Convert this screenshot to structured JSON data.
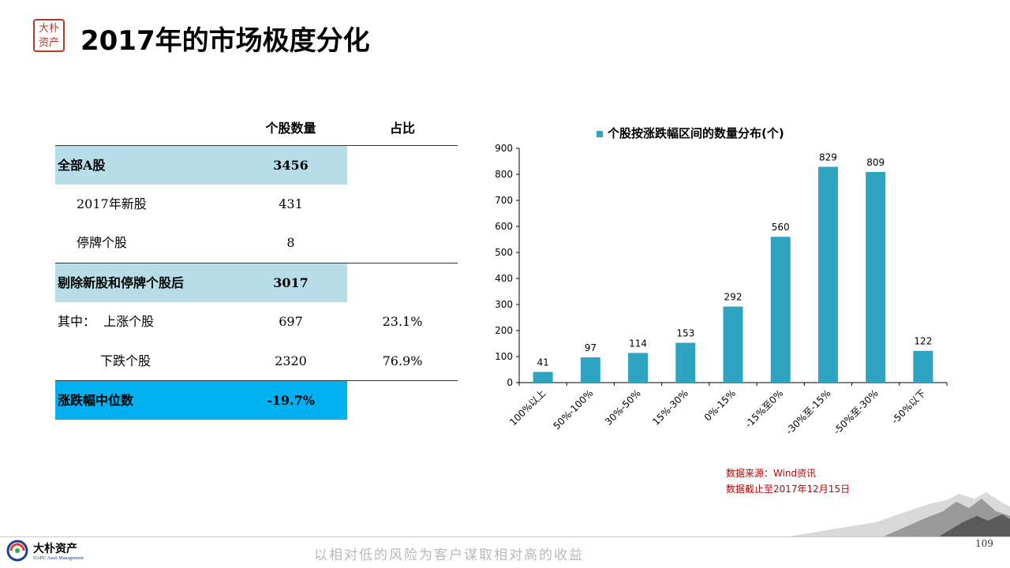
{
  "header": {
    "seal_text": "大朴资产",
    "title": "2017年的市场极度分化"
  },
  "table": {
    "headers": [
      "",
      "个股数量",
      "占比"
    ],
    "rows": [
      {
        "label": "全部A股",
        "count": "3456",
        "pct": ""
      },
      {
        "label": "2017年新股",
        "count": "431",
        "pct": ""
      },
      {
        "label": "停牌个股",
        "count": "8",
        "pct": ""
      },
      {
        "label": "剔除新股和停牌个股后",
        "count": "3017",
        "pct": ""
      },
      {
        "label": "其中：  上涨个股",
        "count": "697",
        "pct": "23.1%"
      },
      {
        "label": "下跌个股",
        "count": "2320",
        "pct": "76.9%"
      },
      {
        "label": "涨跌幅中位数",
        "count": "-19.7%",
        "pct": ""
      }
    ]
  },
  "chart_data": {
    "type": "bar",
    "legend": "个股按涨跌幅区间的数量分布(个)",
    "categories": [
      "100%以上",
      "50%-100%",
      "30%-50%",
      "15%-30%",
      "0%-15%",
      "-15%至0%",
      "-30%至-15%",
      "-50%至-30%",
      "-50%以下"
    ],
    "values": [
      41,
      97,
      114,
      153,
      292,
      560,
      829,
      809,
      122
    ],
    "ylim": [
      0,
      900
    ],
    "yticks": [
      0,
      100,
      200,
      300,
      400,
      500,
      600,
      700,
      800,
      900
    ],
    "color": "#2ea3c2",
    "legend_position": "top"
  },
  "source": {
    "line1": "数据来源：Wind资讯",
    "line2": "数据截止至2017年12月15日"
  },
  "footer": {
    "company_cn": "大朴资产",
    "company_en": "DAPU Asset Management",
    "slogan": "以相对低的风险为客户谋取相对高的收益",
    "page": "109"
  }
}
